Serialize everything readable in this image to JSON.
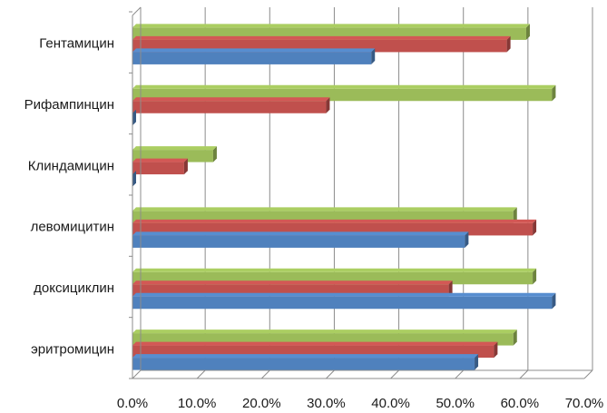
{
  "chart_data": {
    "type": "bar",
    "orientation": "horizontal",
    "style": "3d-clustered",
    "categories": [
      "Гентамицин",
      "Рифампинцин",
      "Клиндамицин",
      "левомицитин",
      "доксициклин",
      "эритромицин"
    ],
    "series": [
      {
        "values": [
          37.0,
          0.0,
          0.0,
          51.5,
          65.0,
          53.0
        ],
        "color": "#4f81bd"
      },
      {
        "values": [
          58.0,
          30.0,
          8.0,
          62.0,
          49.0,
          56.0
        ],
        "color": "#c0504d"
      },
      {
        "values": [
          61.0,
          65.0,
          12.5,
          59.0,
          62.0,
          59.0
        ],
        "color": "#9bbb59"
      }
    ],
    "xlim": [
      0,
      70
    ],
    "x_ticks": [
      "0.0%",
      "10.0%",
      "20.0%",
      "30.0%",
      "40.0%",
      "50.0%",
      "60.0%",
      "70.0%"
    ],
    "x_tick_values": [
      0,
      10,
      20,
      30,
      40,
      50,
      60,
      70
    ],
    "grid": true,
    "legend": "none"
  }
}
